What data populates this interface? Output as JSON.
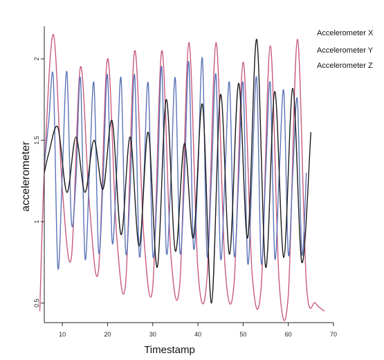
{
  "chart_data": {
    "type": "line",
    "title": "",
    "xlabel": "Timestamp",
    "ylabel": "accelerometer",
    "xlim": [
      6,
      70
    ],
    "ylim": [
      0.38,
      2.2
    ],
    "x_ticks": [
      10,
      20,
      30,
      40,
      50,
      60,
      70
    ],
    "y_ticks": [
      0.5,
      1,
      1.5,
      2
    ],
    "grid": false,
    "legend_placement": "top-right",
    "colors": {
      "Accelerometer X": "#1a1a1a",
      "Accelerometer Y": "#5b74b8",
      "Accelerometer Z": "#c85a7e"
    },
    "series": [
      {
        "name": "Accelerometer X",
        "x": [
          6,
          7,
          9,
          11,
          13,
          15,
          17,
          19,
          21,
          23,
          25,
          27,
          29,
          31,
          33,
          35,
          37,
          39,
          41,
          43,
          45,
          47,
          49,
          51,
          53,
          55,
          57,
          59,
          61,
          63,
          65
        ],
        "values": [
          1.3,
          1.42,
          1.58,
          1.18,
          1.52,
          1.18,
          1.5,
          1.2,
          1.62,
          0.92,
          1.52,
          0.85,
          1.55,
          0.72,
          1.75,
          0.82,
          1.48,
          0.9,
          1.72,
          0.5,
          1.78,
          0.8,
          1.85,
          0.9,
          2.12,
          0.72,
          1.8,
          0.78,
          1.82,
          0.75,
          1.55
        ]
      },
      {
        "name": "Accelerometer Y",
        "x": [
          6,
          7,
          8,
          9,
          10,
          11,
          12,
          13,
          14,
          15,
          16,
          17,
          18,
          19,
          20,
          21,
          22,
          23,
          24,
          25,
          26,
          27,
          28,
          29,
          30,
          31,
          32,
          33,
          34,
          35,
          36,
          37,
          38,
          39,
          40,
          41,
          42,
          43,
          44,
          45,
          46,
          47,
          48,
          49,
          50,
          51,
          52,
          53,
          54,
          55,
          56,
          57,
          58,
          59,
          60,
          61,
          62,
          63,
          64
        ],
        "values": [
          1.35,
          1.62,
          1.88,
          0.72,
          1.3,
          1.92,
          1.0,
          1.25,
          1.88,
          0.78,
          1.3,
          1.85,
          0.82,
          1.25,
          1.9,
          0.88,
          1.3,
          1.88,
          0.82,
          1.2,
          1.9,
          0.8,
          1.25,
          1.85,
          0.8,
          1.2,
          1.95,
          0.82,
          1.25,
          1.88,
          0.82,
          1.25,
          1.98,
          0.85,
          1.3,
          2.0,
          0.8,
          1.28,
          1.9,
          0.78,
          1.3,
          1.85,
          0.8,
          1.25,
          1.85,
          0.75,
          1.3,
          1.88,
          0.75,
          1.3,
          1.85,
          0.78,
          1.3,
          1.8,
          0.8,
          1.3,
          1.75,
          0.8,
          1.3
        ]
      },
      {
        "name": "Accelerometer Z",
        "x": [
          5,
          6,
          8,
          10,
          12,
          14,
          16,
          18,
          20,
          22,
          24,
          26,
          28,
          30,
          32,
          34,
          36,
          38,
          40,
          42,
          44,
          46,
          48,
          50,
          52,
          54,
          56,
          58,
          60,
          62,
          64,
          66,
          68
        ],
        "values": [
          0.45,
          1.3,
          2.15,
          1.2,
          0.78,
          1.95,
          1.1,
          0.7,
          2.0,
          0.92,
          0.62,
          2.05,
          0.92,
          0.6,
          2.05,
          0.8,
          0.62,
          2.1,
          0.7,
          0.65,
          2.1,
          0.72,
          0.62,
          1.98,
          0.68,
          0.6,
          2.08,
          0.62,
          0.55,
          2.12,
          0.62,
          0.5,
          0.45
        ]
      }
    ]
  }
}
